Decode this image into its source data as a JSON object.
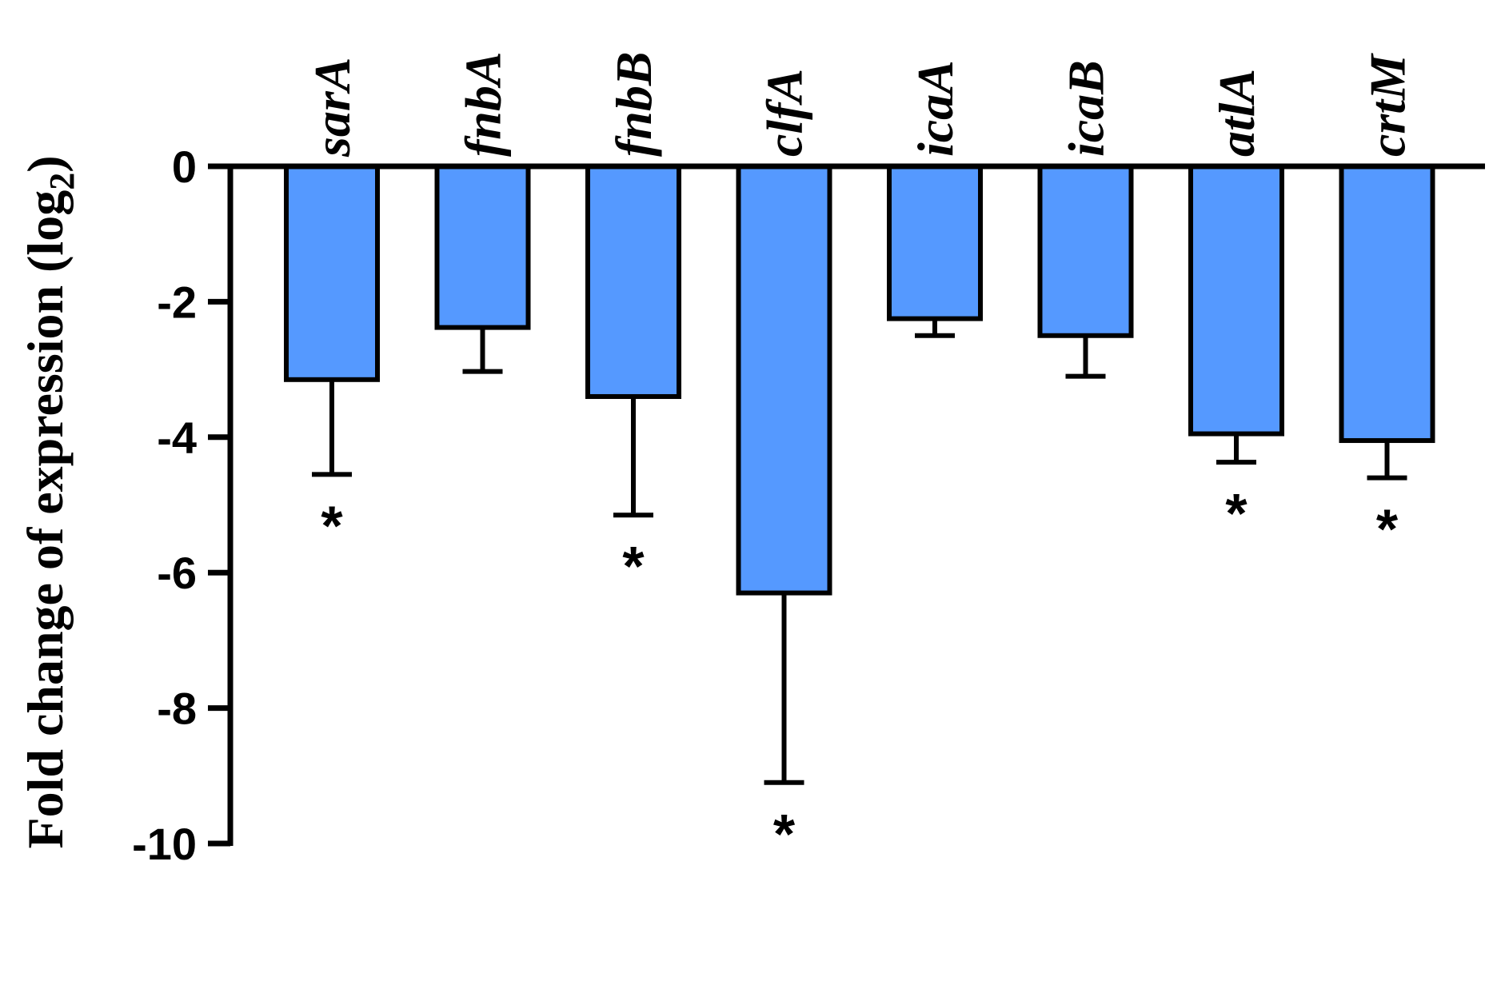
{
  "chart_data": {
    "type": "bar",
    "title": "",
    "xlabel": "",
    "ylabel": "Fold change of expression (log",
    "ylabel_subscript": "2",
    "ylabel_close": ")",
    "ylim": [
      -10,
      0
    ],
    "yticks": [
      0,
      -2,
      -4,
      -6,
      -8,
      -10
    ],
    "ytick_labels": [
      "0",
      "-2",
      "-4",
      "-6",
      "-8",
      "-10"
    ],
    "categories": [
      "sarA",
      "fnbA",
      "fnbB",
      "clfA",
      "icaA",
      "icaB",
      "atlA",
      "crtM"
    ],
    "values": [
      -3.15,
      -2.38,
      -3.4,
      -6.3,
      -2.25,
      -2.5,
      -3.95,
      -4.05
    ],
    "error": [
      1.4,
      0.65,
      1.75,
      2.8,
      0.25,
      0.6,
      0.42,
      0.55
    ],
    "significance": [
      "*",
      "",
      "*",
      "*",
      "",
      "",
      "*",
      "*"
    ],
    "bar_color": "#5599ff",
    "grid": false,
    "legend": "none"
  }
}
